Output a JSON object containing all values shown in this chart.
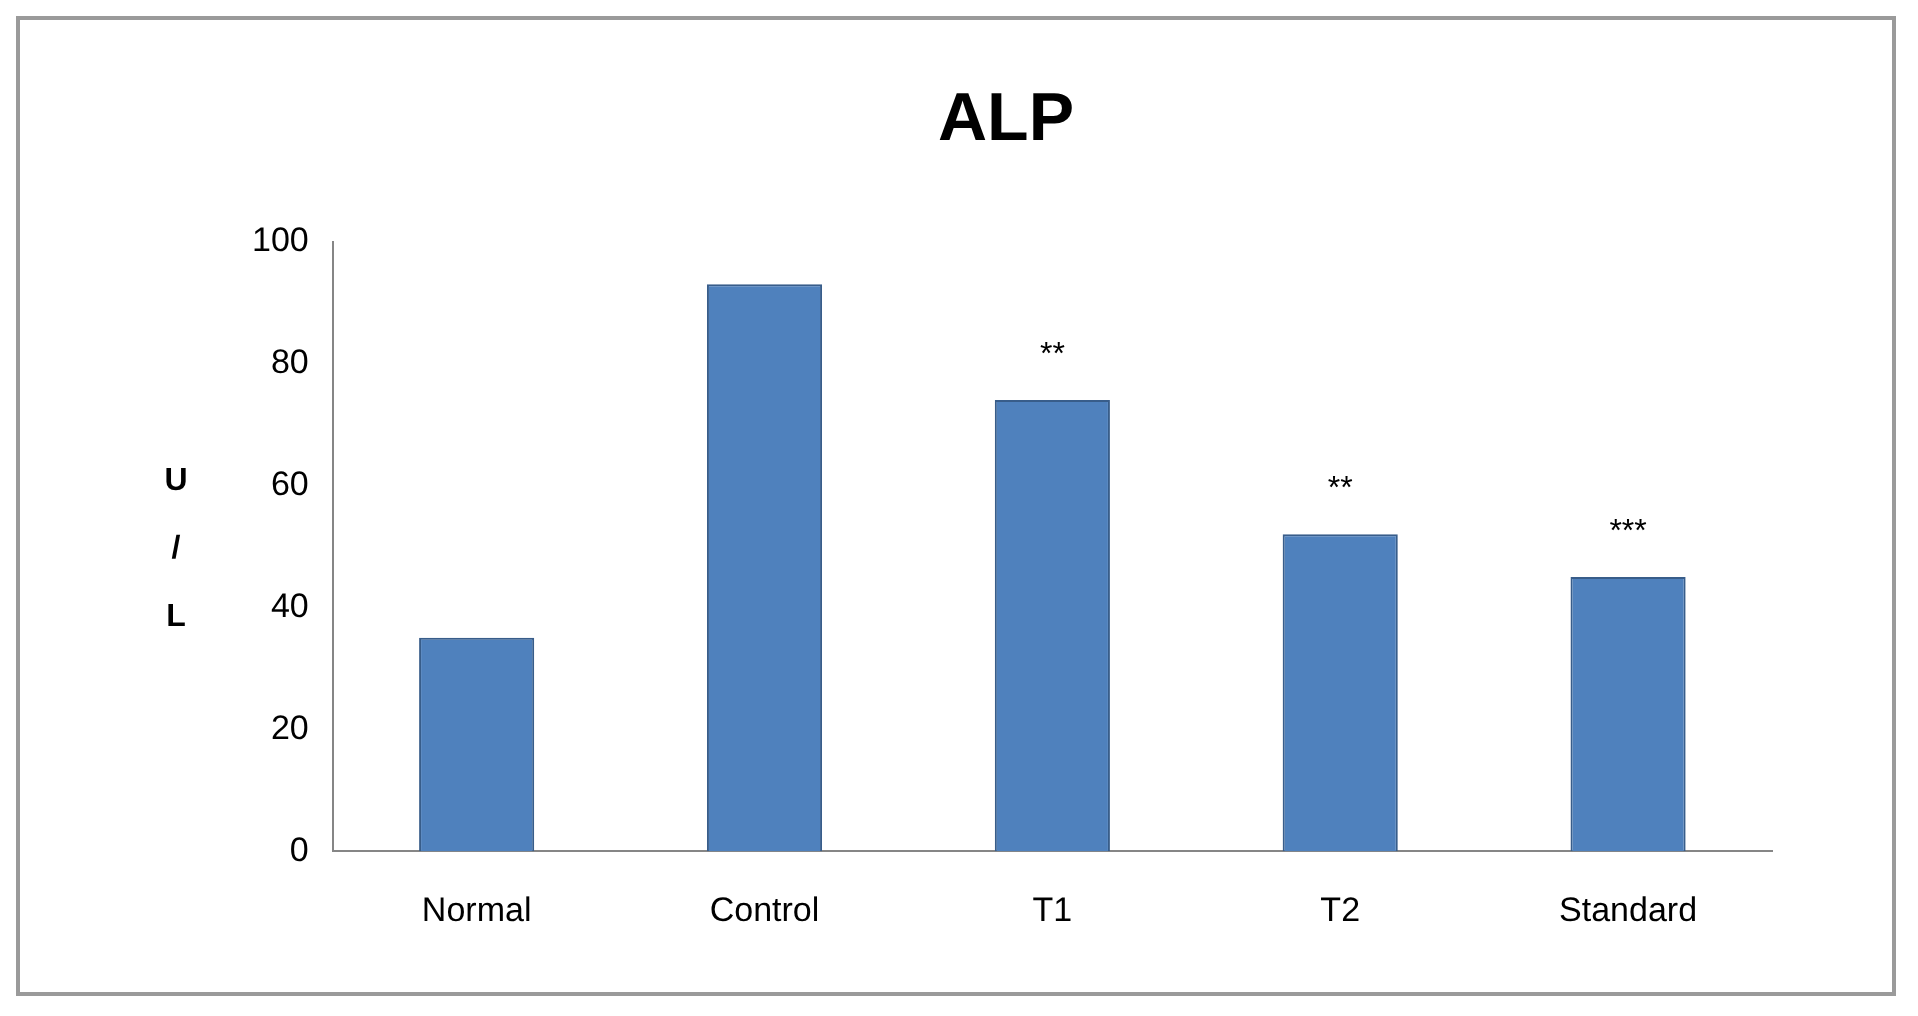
{
  "chart_data": {
    "type": "bar",
    "title": "ALP",
    "ylabel": "U / L",
    "categories": [
      "Normal",
      "Control",
      "T1",
      "T2",
      "Standard"
    ],
    "values": [
      35,
      93,
      74,
      52,
      45
    ],
    "color": "#4f81bd",
    "ylim": [
      0,
      100
    ],
    "yticks": [
      0,
      20,
      40,
      60,
      80,
      100
    ],
    "grid": false,
    "legend": false,
    "annotations": [
      {
        "text": "**",
        "x": "T1",
        "y": 74
      },
      {
        "text": "**",
        "x": "T2",
        "y": 52
      },
      {
        "text": "***",
        "x": "Standard",
        "y": 45
      }
    ]
  }
}
